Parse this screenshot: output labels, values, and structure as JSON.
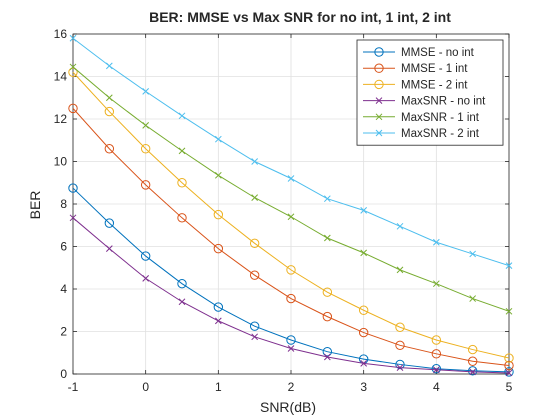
{
  "chart_data": {
    "type": "line",
    "title": "BER: MMSE vs Max SNR for no int, 1 int, 2 int",
    "xlabel": "SNR(dB)",
    "ylabel": "BER",
    "xlim": [
      -1,
      5
    ],
    "ylim": [
      0,
      16
    ],
    "xticks": [
      -1,
      0,
      1,
      2,
      3,
      4,
      5
    ],
    "yticks": [
      0,
      2,
      4,
      6,
      8,
      10,
      12,
      14,
      16
    ],
    "grid": true,
    "legend_position": "top-right",
    "x": [
      -1,
      -0.5,
      0,
      0.5,
      1,
      1.5,
      2,
      2.5,
      3,
      3.5,
      4,
      4.5,
      5
    ],
    "series": [
      {
        "name": "MMSE - no int",
        "marker": "o",
        "color": "#0072BD",
        "values": [
          8.75,
          7.1,
          5.55,
          4.25,
          3.15,
          2.25,
          1.6,
          1.05,
          0.7,
          0.45,
          0.25,
          0.15,
          0.1
        ]
      },
      {
        "name": "MMSE - 1 int",
        "marker": "o",
        "color": "#D95319",
        "values": [
          12.5,
          10.6,
          8.9,
          7.35,
          5.9,
          4.65,
          3.55,
          2.7,
          1.95,
          1.35,
          0.95,
          0.6,
          0.4
        ]
      },
      {
        "name": "MMSE - 2 int",
        "marker": "o",
        "color": "#EDB120",
        "values": [
          14.2,
          12.35,
          10.6,
          9.0,
          7.5,
          6.15,
          4.9,
          3.85,
          3.0,
          2.2,
          1.6,
          1.15,
          0.75
        ]
      },
      {
        "name": "MaxSNR - no int",
        "marker": "x",
        "color": "#7E2F8E",
        "values": [
          7.35,
          5.9,
          4.5,
          3.4,
          2.5,
          1.75,
          1.2,
          0.8,
          0.5,
          0.3,
          0.2,
          0.1,
          0.05
        ]
      },
      {
        "name": "MaxSNR - 1 int",
        "marker": "x",
        "color": "#77AC30",
        "values": [
          14.45,
          13.0,
          11.7,
          10.5,
          9.35,
          8.3,
          7.4,
          6.4,
          5.7,
          4.9,
          4.25,
          3.55,
          2.95
        ]
      },
      {
        "name": "MaxSNR - 2 int",
        "marker": "x",
        "color": "#4DBEEE",
        "values": [
          15.8,
          14.5,
          13.3,
          12.15,
          11.05,
          10.0,
          9.2,
          8.25,
          7.7,
          6.95,
          6.2,
          5.65,
          5.1
        ]
      }
    ]
  }
}
